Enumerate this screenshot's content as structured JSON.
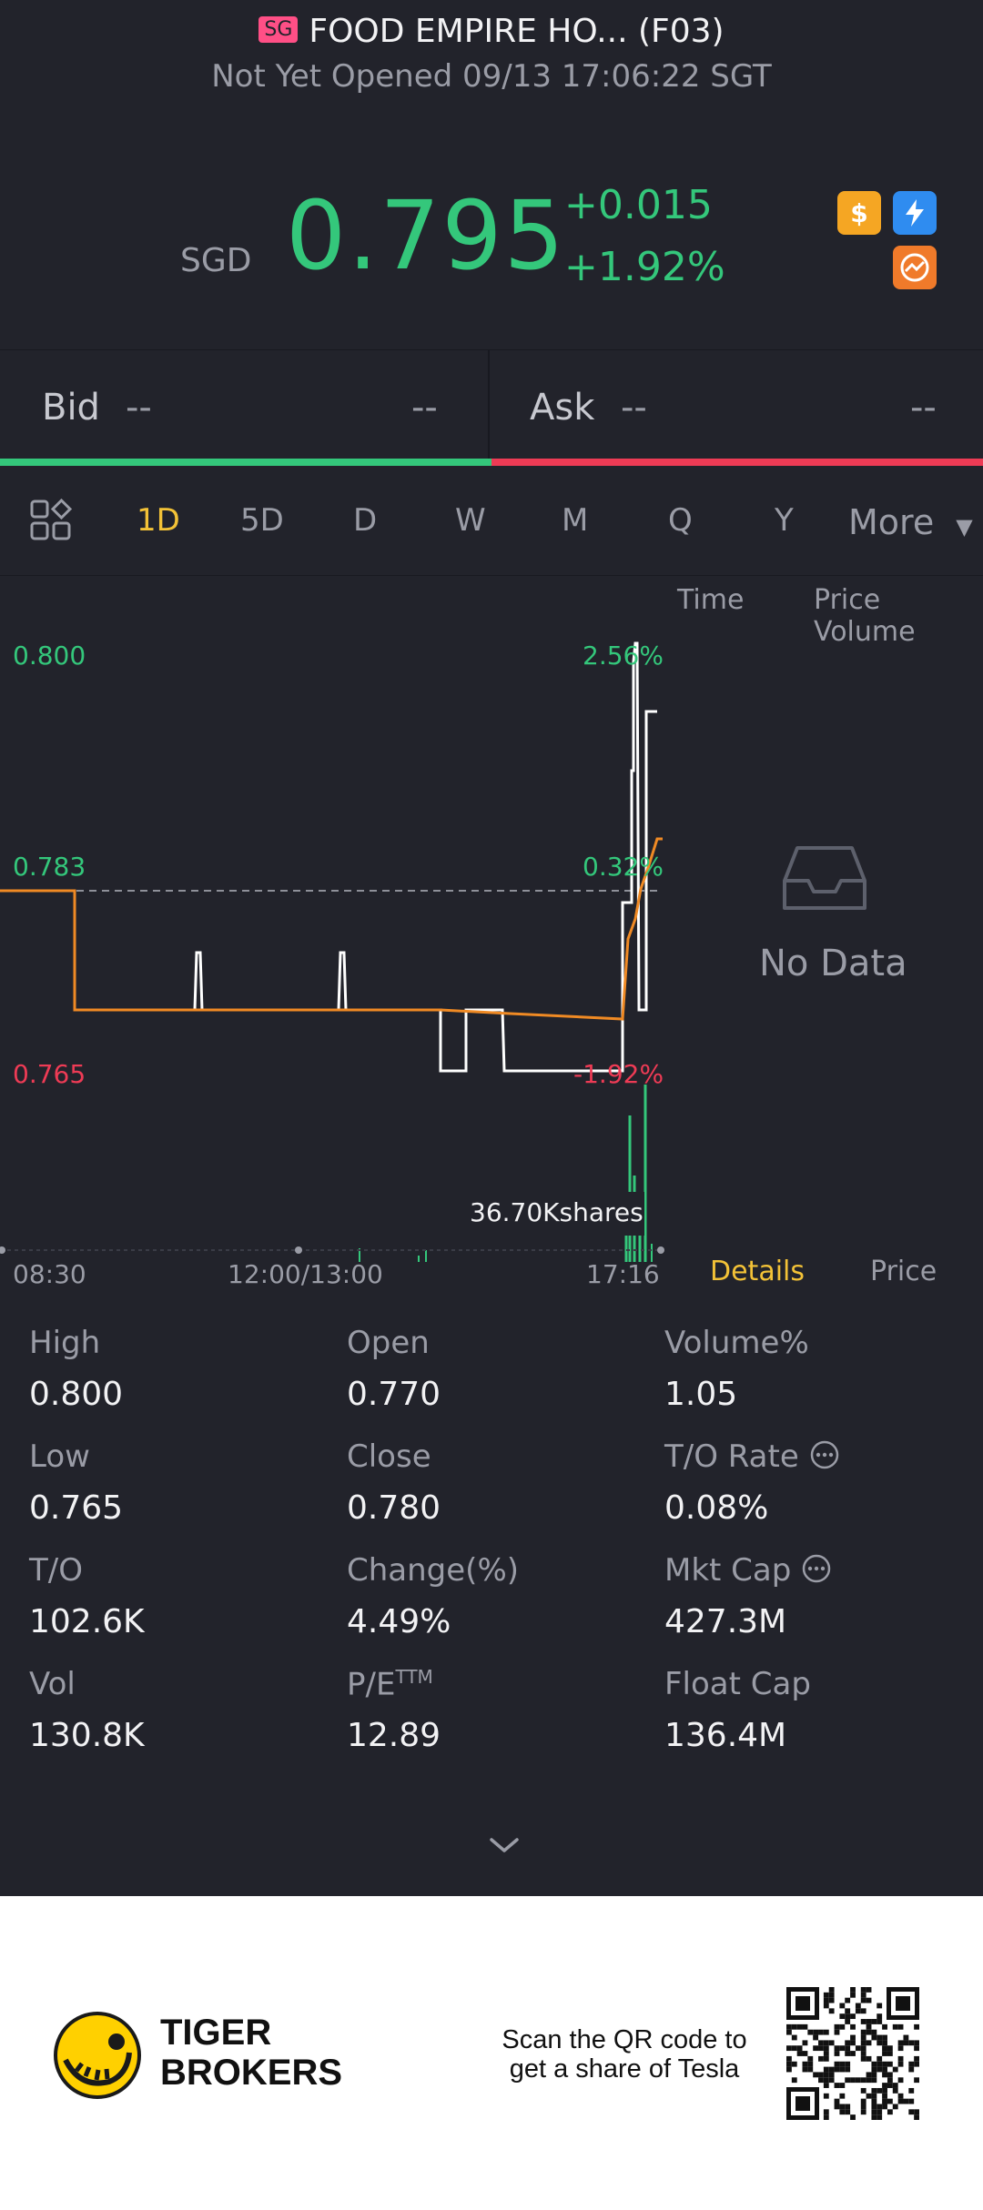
{
  "header": {
    "market_flag": "SG",
    "title": "FOOD EMPIRE HO... (F03)",
    "status": "Not Yet Opened 09/13 17:06:22 SGT",
    "currency": "SGD",
    "price": "0.795",
    "change": "+0.015",
    "change_pct": "+1.92%",
    "icons": [
      "dollar-icon",
      "lightning-icon",
      "chart-circle-icon"
    ]
  },
  "bid_ask": {
    "bid_label": "Bid",
    "bid_price": "--",
    "bid_size": "--",
    "ask_label": "Ask",
    "ask_price": "--",
    "ask_size": "--"
  },
  "tabs": {
    "items": [
      "1D",
      "5D",
      "D",
      "W",
      "M",
      "Q",
      "Y"
    ],
    "active": "1D",
    "more": "More"
  },
  "chart_data": {
    "type": "line",
    "title": "",
    "series": [],
    "y_labels": [
      "0.800",
      "0.783",
      "0.765"
    ],
    "y_right_labels": [
      "2.56%",
      "0.32%",
      "-1.92%"
    ],
    "x_labels": [
      "08:30",
      "12:00/13:00",
      "17:16"
    ],
    "volume_label": "36.70Kshares",
    "reference_value": 0.783,
    "ylim": [
      0.765,
      0.8
    ]
  },
  "side_panel": {
    "time_label": "Time",
    "price_volume_label": "Price Volume",
    "empty_text": "No Data",
    "details_tab": "Details",
    "price_tab": "Price"
  },
  "stats": {
    "high_label": "High",
    "high_value": "0.800",
    "open_label": "Open",
    "open_value": "0.770",
    "volume_pct_label": "Volume%",
    "volume_pct_value": "1.05",
    "low_label": "Low",
    "low_value": "0.765",
    "close_label": "Close",
    "close_value": "0.780",
    "to_rate_label": "T/O Rate",
    "to_rate_value": "0.08%",
    "to_label": "T/O",
    "to_value": "102.6K",
    "change_label": "Change(%)",
    "change_value": "4.49%",
    "mkt_cap_label": "Mkt Cap",
    "mkt_cap_value": "427.3M",
    "vol_label": "Vol",
    "vol_value": "130.8K",
    "pe_label": "P/E",
    "pe_sup": "TTM",
    "pe_value": "12.89",
    "float_cap_label": "Float Cap",
    "float_cap_value": "136.4M"
  },
  "footer": {
    "brand_line1": "TIGER",
    "brand_line2": "BROKERS",
    "qr_line1": "Scan the QR code to",
    "qr_line2": "get a share of Tesla"
  },
  "colors": {
    "background": "#22232b",
    "up_green": "#34c77b",
    "down_red": "#ee3b55",
    "accent_yellow": "#f3c237",
    "avg_line_orange": "#f08a24"
  }
}
